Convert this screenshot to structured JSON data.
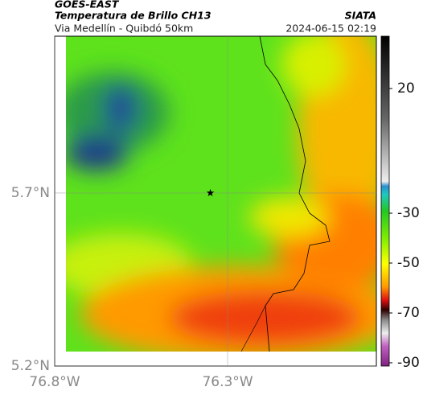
{
  "chart_data": {
    "type": "map",
    "title": "GOES-EAST",
    "subtitle": "Temperatura de Brillo CH13",
    "region": "Via Medellín - Quibdó 50km",
    "source": "SIATA",
    "datetime": "2024-06-15 02:19",
    "xlim": [
      -76.8,
      -75.87
    ],
    "ylim": [
      5.2,
      6.153
    ],
    "xticks": [
      {
        "value": -76.8,
        "label": "76.8°W"
      },
      {
        "value": -76.3,
        "label": "76.3°W"
      }
    ],
    "yticks": [
      {
        "value": 5.2,
        "label": "5.2°N"
      },
      {
        "value": 5.7,
        "label": "5.7°N"
      }
    ],
    "grid": true,
    "marker": {
      "lon": -76.35,
      "lat": 5.7
    },
    "clim": [
      -91.3,
      41
    ],
    "cticks": [
      20,
      -30,
      -50,
      -70,
      -90
    ]
  }
}
